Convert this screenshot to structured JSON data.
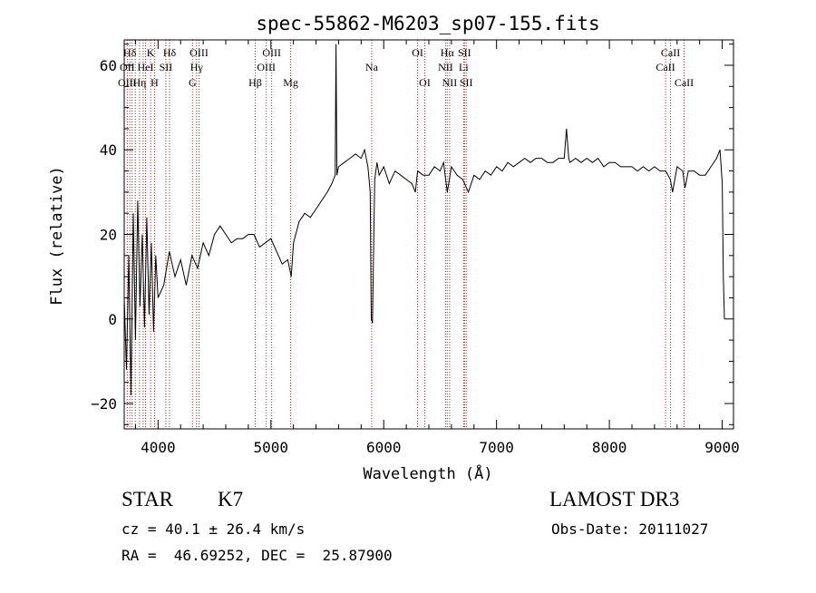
{
  "chart_data": {
    "type": "line",
    "title": "spec-55862-M6203_sp07-155.fits",
    "xlabel": "Wavelength (Å)",
    "ylabel": "Flux (relative)",
    "xlim": [
      3700,
      9100
    ],
    "ylim": [
      -26,
      66
    ],
    "x_ticks": [
      4000,
      5000,
      6000,
      7000,
      8000,
      9000
    ],
    "x_tick_labels": [
      "4000",
      "5000",
      "6000",
      "7000",
      "8000",
      "9000"
    ],
    "y_ticks": [
      -20,
      0,
      20,
      40,
      60
    ],
    "y_tick_labels": [
      "−20",
      "0",
      "20",
      "40",
      "60"
    ],
    "series": [
      {
        "name": "flux",
        "x": [
          3700,
          3720,
          3740,
          3760,
          3780,
          3800,
          3820,
          3840,
          3860,
          3880,
          3900,
          3920,
          3940,
          3960,
          3980,
          4000,
          4050,
          4100,
          4150,
          4200,
          4250,
          4300,
          4350,
          4400,
          4450,
          4500,
          4550,
          4600,
          4650,
          4700,
          4750,
          4800,
          4850,
          4900,
          4950,
          5000,
          5050,
          5100,
          5150,
          5180,
          5200,
          5250,
          5300,
          5350,
          5400,
          5450,
          5500,
          5540,
          5570,
          5577,
          5585,
          5600,
          5650,
          5700,
          5750,
          5800,
          5830,
          5860,
          5880,
          5890,
          5900,
          5920,
          5940,
          5960,
          6000,
          6050,
          6100,
          6150,
          6200,
          6250,
          6280,
          6300,
          6350,
          6400,
          6450,
          6500,
          6530,
          6563,
          6600,
          6650,
          6700,
          6750,
          6800,
          6850,
          6900,
          6950,
          7000,
          7050,
          7100,
          7150,
          7200,
          7250,
          7300,
          7350,
          7400,
          7450,
          7500,
          7550,
          7600,
          7620,
          7640,
          7650,
          7700,
          7750,
          7800,
          7850,
          7900,
          7950,
          8000,
          8050,
          8100,
          8150,
          8200,
          8250,
          8300,
          8350,
          8400,
          8450,
          8500,
          8540,
          8560,
          8600,
          8650,
          8670,
          8700,
          8750,
          8800,
          8850,
          8900,
          8950,
          8980,
          9000,
          9010,
          9020
        ],
        "y": [
          5,
          -12,
          15,
          -18,
          25,
          -5,
          28,
          3,
          20,
          -2,
          24,
          1,
          18,
          -3,
          15,
          5,
          8,
          16,
          10,
          14,
          8,
          15,
          12,
          18,
          15,
          20,
          22,
          20,
          18,
          19,
          19,
          20,
          20,
          17,
          18,
          19,
          16,
          13,
          14,
          10,
          18,
          23,
          25,
          24,
          26,
          28,
          30,
          32,
          34,
          65,
          34,
          36,
          37,
          38,
          39,
          38,
          40,
          36,
          30,
          0,
          -1,
          33,
          37,
          34,
          36,
          32,
          35,
          34,
          33,
          32,
          30,
          35,
          34,
          34,
          36,
          35,
          37,
          30,
          36,
          34,
          33,
          30,
          34,
          33,
          35,
          34,
          36,
          35,
          37,
          36,
          37,
          38,
          37,
          38,
          38,
          37,
          37,
          38,
          38,
          45,
          38,
          37,
          38,
          37,
          38,
          37,
          38,
          36,
          37,
          37,
          36,
          36,
          36,
          35,
          36,
          35,
          36,
          35,
          35,
          33,
          30,
          36,
          35,
          31,
          35,
          35,
          34,
          34,
          36,
          38,
          40,
          32,
          10,
          0
        ]
      }
    ],
    "annotations": [
      {
        "label": "Hδ",
        "x": 3750,
        "row": 1
      },
      {
        "label": "OII",
        "x": 3727,
        "row": 2
      },
      {
        "label": "OIII",
        "x": 3727,
        "row": 3
      },
      {
        "label": "K",
        "x": 3934,
        "row": 1
      },
      {
        "label": "HeI",
        "x": 3889,
        "row": 2
      },
      {
        "label": "Hη",
        "x": 3835,
        "row": 3
      },
      {
        "label": "H",
        "x": 3969,
        "row": 3
      },
      {
        "label": "SII",
        "x": 4069,
        "row": 2
      },
      {
        "label": "Hδ",
        "x": 4102,
        "row": 1
      },
      {
        "label": "OIII",
        "x": 4363,
        "row": 1
      },
      {
        "label": "Hγ",
        "x": 4341,
        "row": 2
      },
      {
        "label": "G",
        "x": 4305,
        "row": 3
      },
      {
        "label": "Hβ",
        "x": 4861,
        "row": 3
      },
      {
        "label": "OIII",
        "x": 5007,
        "row": 1
      },
      {
        "label": "OIII",
        "x": 4959,
        "row": 2
      },
      {
        "label": "Mg",
        "x": 5175,
        "row": 3
      },
      {
        "label": "Na",
        "x": 5893,
        "row": 2
      },
      {
        "label": "OI",
        "x": 6300,
        "row": 1
      },
      {
        "label": "OI",
        "x": 6364,
        "row": 3
      },
      {
        "label": "Hα",
        "x": 6563,
        "row": 1
      },
      {
        "label": "NII",
        "x": 6548,
        "row": 2
      },
      {
        "label": "NII",
        "x": 6584,
        "row": 3
      },
      {
        "label": "SII",
        "x": 6716,
        "row": 1
      },
      {
        "label": "Li",
        "x": 6708,
        "row": 2
      },
      {
        "label": "SII",
        "x": 6731,
        "row": 3
      },
      {
        "label": "CaII",
        "x": 8542,
        "row": 1
      },
      {
        "label": "CaII",
        "x": 8498,
        "row": 2
      },
      {
        "label": "CaII",
        "x": 8662,
        "row": 3
      }
    ],
    "line_positions": [
      3727,
      3750,
      3770,
      3798,
      3835,
      3868,
      3889,
      3934,
      3969,
      4069,
      4102,
      4305,
      4341,
      4363,
      4861,
      4959,
      5007,
      5175,
      5893,
      6300,
      6364,
      6548,
      6563,
      6584,
      6708,
      6716,
      6731,
      8498,
      8542,
      8662
    ],
    "line_color": "#b22222"
  },
  "info": {
    "object_class": "STAR",
    "subclass": "K7",
    "survey": "LAMOST DR3",
    "cz": "cz = 40.1 ± 26.4 km/s",
    "obs_date": "Obs-Date: 20111027",
    "coords": "RA =  46.69252, DEC =  25.87900"
  }
}
